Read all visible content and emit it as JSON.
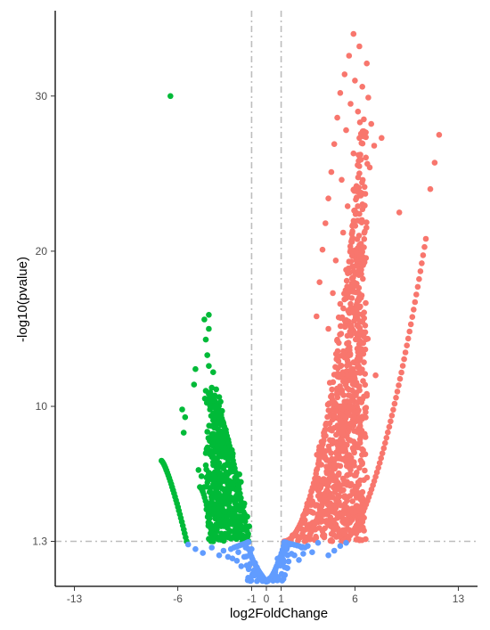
{
  "chart_data": {
    "type": "scatter",
    "title": "",
    "xlabel": "log2FoldChange",
    "ylabel": "-log10(pvalue)",
    "xlim": [
      -14.3,
      14.3
    ],
    "ylim": [
      -1.6,
      35.5
    ],
    "x_ticks": [
      -13,
      -6,
      -1,
      0,
      1,
      6,
      13
    ],
    "x_tick_labels": [
      "-13",
      "-6",
      "-1",
      "0",
      "1",
      "6",
      "13"
    ],
    "y_ticks": [
      1.3,
      10,
      20,
      30
    ],
    "y_tick_labels": [
      "1.3",
      "10",
      "20",
      "30"
    ],
    "grid": false,
    "legend": "none",
    "thresholds": {
      "log2fc": [
        -1,
        1
      ],
      "pvalue_log10": 1.3,
      "line_style": "dash-dot",
      "line_color": "#bdbdbd"
    },
    "colors": {
      "down": "#00BA38",
      "up": "#F8766D",
      "ns": "#619CFF"
    },
    "series": [
      {
        "color_key": "down",
        "points": [
          [
            -6.5,
            30.0
          ],
          [
            -3.9,
            15.9
          ],
          [
            -4.2,
            15.6
          ],
          [
            -3.9,
            15.0
          ],
          [
            -4.1,
            14.3
          ],
          [
            -4.0,
            13.3
          ],
          [
            -3.9,
            12.6
          ],
          [
            -4.8,
            12.4
          ],
          [
            -3.6,
            12.2
          ],
          [
            -4.9,
            11.4
          ],
          [
            -3.7,
            11.2
          ],
          [
            -3.4,
            11.1
          ],
          [
            -4.1,
            11.0
          ],
          [
            -3.8,
            10.9
          ],
          [
            -3.5,
            10.7
          ],
          [
            -3.2,
            10.6
          ],
          [
            -3.9,
            10.5
          ],
          [
            -3.6,
            10.4
          ],
          [
            -3.1,
            10.3
          ],
          [
            -5.7,
            9.8
          ],
          [
            -3.5,
            9.9
          ],
          [
            -3.0,
            9.7
          ],
          [
            -3.3,
            9.6
          ],
          [
            -5.5,
            9.3
          ],
          [
            -3.6,
            9.1
          ],
          [
            -3.2,
            9.0
          ],
          [
            -2.9,
            8.8
          ],
          [
            -3.4,
            8.6
          ],
          [
            -3.1,
            8.4
          ],
          [
            -5.6,
            8.3
          ],
          [
            -3.7,
            8.2
          ],
          [
            -2.8,
            8.1
          ],
          [
            -3.5,
            7.9
          ],
          [
            -3.0,
            7.7
          ],
          [
            -4.0,
            7.3
          ],
          [
            -3.3,
            7.2
          ],
          [
            -2.7,
            7.1
          ],
          [
            -3.8,
            6.9
          ],
          [
            -3.2,
            6.8
          ],
          [
            -2.6,
            6.6
          ],
          [
            -3.6,
            6.4
          ],
          [
            -4.1,
            6.2
          ],
          [
            -3.4,
            6.1
          ],
          [
            -2.9,
            6.0
          ],
          [
            -4.6,
            5.9
          ],
          [
            -3.9,
            5.7
          ],
          [
            -3.1,
            5.6
          ],
          [
            -4.4,
            5.5
          ],
          [
            -3.7,
            5.3
          ],
          [
            -2.5,
            5.2
          ],
          [
            -3.5,
            5.0
          ],
          [
            -4.2,
            4.8
          ],
          [
            -3.0,
            4.7
          ],
          [
            -3.8,
            4.5
          ],
          [
            -2.8,
            4.4
          ],
          [
            -3.4,
            4.2
          ],
          [
            -2.4,
            4.1
          ],
          [
            -3.2,
            3.9
          ],
          [
            -2.6,
            3.7
          ],
          [
            -3.0,
            3.5
          ],
          [
            -2.3,
            3.4
          ],
          [
            -2.8,
            3.2
          ],
          [
            -2.5,
            3.0
          ],
          [
            -2.2,
            2.9
          ],
          [
            -2.7,
            2.7
          ],
          [
            -2.4,
            2.5
          ],
          [
            -2.1,
            2.3
          ],
          [
            -2.0,
            2.0
          ],
          [
            -1.8,
            1.8
          ],
          [
            -1.6,
            1.6
          ],
          [
            -1.5,
            1.45
          ],
          [
            -1.3,
            1.35
          ]
        ],
        "bands": [
          {
            "x_start": -7.1,
            "x_end": -5.4,
            "y_start": 6.5,
            "y_end": 1.3,
            "k": 1.3,
            "fill": 0.0,
            "steps": 26
          },
          {
            "x_start": -4.5,
            "x_end": -3.6,
            "y_start": 4.8,
            "y_end": 1.3,
            "k": 1.6,
            "fill": 0.0,
            "steps": 14
          },
          {
            "x_start": -3.9,
            "x_end": -1.2,
            "y_start": 10.8,
            "y_end": 1.3,
            "k": 1.6,
            "fill": 1.0,
            "steps": 46
          }
        ]
      },
      {
        "color_key": "up",
        "points": [
          [
            5.9,
            34.0
          ],
          [
            6.3,
            33.2
          ],
          [
            5.6,
            32.6
          ],
          [
            6.8,
            32.1
          ],
          [
            5.3,
            31.4
          ],
          [
            6.0,
            31.0
          ],
          [
            6.5,
            30.6
          ],
          [
            5.0,
            30.2
          ],
          [
            6.9,
            29.9
          ],
          [
            5.7,
            29.5
          ],
          [
            6.2,
            29.0
          ],
          [
            4.8,
            28.6
          ],
          [
            7.1,
            28.2
          ],
          [
            5.4,
            27.8
          ],
          [
            6.6,
            27.4
          ],
          [
            7.8,
            27.3
          ],
          [
            7.3,
            26.8
          ],
          [
            4.6,
            26.9
          ],
          [
            5.9,
            26.3
          ],
          [
            6.4,
            25.9
          ],
          [
            7.0,
            25.4
          ],
          [
            4.4,
            25.1
          ],
          [
            5.1,
            24.6
          ],
          [
            6.1,
            24.2
          ],
          [
            6.7,
            23.7
          ],
          [
            4.2,
            23.4
          ],
          [
            5.5,
            22.9
          ],
          [
            6.3,
            22.4
          ],
          [
            4.0,
            21.8
          ],
          [
            5.2,
            21.2
          ],
          [
            5.8,
            20.6
          ],
          [
            3.8,
            20.1
          ],
          [
            4.7,
            19.4
          ],
          [
            5.4,
            18.8
          ],
          [
            3.6,
            18.0
          ],
          [
            4.5,
            17.3
          ],
          [
            5.0,
            16.6
          ],
          [
            3.4,
            15.8
          ],
          [
            4.2,
            15.0
          ],
          [
            11.7,
            27.5
          ],
          [
            11.4,
            25.7
          ],
          [
            11.1,
            24.0
          ],
          [
            9.0,
            22.5
          ],
          [
            6.8,
            10.8
          ],
          [
            7.4,
            12.0
          ]
        ],
        "bands": [
          {
            "x_start": 1.2,
            "x_end": 6.6,
            "y_start": 1.3,
            "y_end": 28.5,
            "k": 2.0,
            "fill": 0.8,
            "steps": 70
          },
          {
            "x_start": 2.6,
            "x_end": 6.6,
            "y_start": 1.3,
            "y_end": 14.5,
            "k": 1.4,
            "fill": 0.0,
            "steps": 46
          },
          {
            "x_start": 5.1,
            "x_end": 10.8,
            "y_start": 1.3,
            "y_end": 20.8,
            "k": 1.7,
            "fill": 0.0,
            "steps": 62
          }
        ]
      },
      {
        "color_key": "ns",
        "points": [
          [
            -5.3,
            1.1
          ],
          [
            -4.8,
            0.8
          ],
          [
            -4.3,
            0.55
          ],
          [
            -3.7,
            0.9
          ],
          [
            -3.2,
            0.4
          ],
          [
            -2.9,
            0.7
          ],
          [
            -2.6,
            0.3
          ],
          [
            -2.3,
            0.2
          ],
          [
            -2.0,
            0.05
          ],
          [
            -1.7,
            -0.3
          ],
          [
            -1.4,
            0.9
          ],
          [
            -1.2,
            -0.5
          ],
          [
            -1.0,
            0.8
          ],
          [
            -0.8,
            -0.9
          ],
          [
            -0.6,
            -0.7
          ],
          [
            -0.4,
            -1.1
          ],
          [
            -0.2,
            -1.2
          ],
          [
            0.0,
            -1.2
          ],
          [
            0.2,
            -1.1
          ],
          [
            0.4,
            -0.9
          ],
          [
            0.6,
            -0.6
          ],
          [
            0.8,
            -0.2
          ],
          [
            1.0,
            0.2
          ],
          [
            1.2,
            0.6
          ],
          [
            1.4,
            0.9
          ],
          [
            1.6,
            1.1
          ],
          [
            1.9,
            0.4
          ],
          [
            2.2,
            0.1
          ],
          [
            2.5,
            0.5
          ],
          [
            2.8,
            1.0
          ],
          [
            3.1,
            0.6
          ],
          [
            3.5,
            1.2
          ],
          [
            4.2,
            0.4
          ],
          [
            4.6,
            0.7
          ],
          [
            5.0,
            1.0
          ],
          [
            5.4,
            1.2
          ],
          [
            -1.9,
            0.6
          ],
          [
            1.7,
            0.5
          ],
          [
            -1.5,
            0.3
          ],
          [
            1.5,
            0.0
          ],
          [
            -2.4,
            0.8
          ],
          [
            2.4,
            0.9
          ]
        ],
        "bands": [
          {
            "x_start": -1.25,
            "x_end": 0.0,
            "y_start": 1.25,
            "y_end": -1.3,
            "k": 0.6,
            "fill": 1.0,
            "steps": 16
          },
          {
            "x_start": 0.0,
            "x_end": 1.25,
            "y_start": -1.3,
            "y_end": 1.25,
            "k": 1.6,
            "fill": 1.0,
            "steps": 16
          },
          {
            "x_start": -2.2,
            "x_end": -1.2,
            "y_start": 0.9,
            "y_end": 1.25,
            "k": 1.0,
            "fill": 0.0,
            "steps": 8
          },
          {
            "x_start": 1.2,
            "x_end": 2.6,
            "y_start": 1.25,
            "y_end": 0.9,
            "k": 1.0,
            "fill": 0.0,
            "steps": 8
          }
        ]
      }
    ]
  }
}
